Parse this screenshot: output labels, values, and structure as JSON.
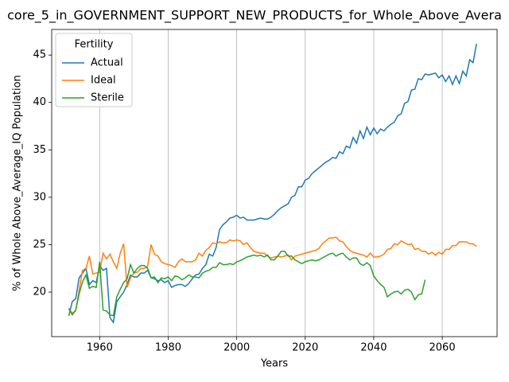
{
  "chart_data": {
    "type": "line",
    "title": "core_5_in_GOVERNMENT_SUPPORT_NEW_PRODUCTS_for_Whole_Above_Avera",
    "x_label": "Years",
    "y_label": "% of Whole Above_Average_IQ Population",
    "legend_title": "Fertility",
    "legend_loc": "upper left",
    "grid": "x",
    "xlim": [
      1946,
      2076
    ],
    "ylim": [
      15.3,
      47.7
    ],
    "xticks": [
      1960,
      1980,
      2000,
      2020,
      2040,
      2060
    ],
    "yticks": [
      20,
      25,
      30,
      35,
      40,
      45
    ],
    "x": [
      1951,
      1952,
      1953,
      1954,
      1955,
      1956,
      1957,
      1958,
      1959,
      1960,
      1961,
      1962,
      1963,
      1964,
      1965,
      1966,
      1967,
      1968,
      1969,
      1970,
      1971,
      1972,
      1973,
      1974,
      1975,
      1976,
      1977,
      1978,
      1979,
      1980,
      1981,
      1982,
      1983,
      1984,
      1985,
      1986,
      1987,
      1988,
      1989,
      1990,
      1991,
      1992,
      1993,
      1994,
      1995,
      1996,
      1997,
      1998,
      1999,
      2000,
      2001,
      2002,
      2003,
      2004,
      2005,
      2006,
      2007,
      2008,
      2009,
      2010,
      2011,
      2012,
      2013,
      2014,
      2015,
      2016,
      2017,
      2018,
      2019,
      2020,
      2021,
      2022,
      2023,
      2024,
      2025,
      2026,
      2027,
      2028,
      2029,
      2030,
      2031,
      2032,
      2033,
      2034,
      2035,
      2036,
      2037,
      2038,
      2039,
      2040,
      2041,
      2042,
      2043,
      2044,
      2045,
      2046,
      2047,
      2048,
      2049,
      2050,
      2051,
      2052,
      2053,
      2054,
      2055,
      2056,
      2057,
      2058,
      2059,
      2060,
      2061,
      2062,
      2063,
      2064,
      2065,
      2066,
      2067,
      2068,
      2069,
      2070
    ],
    "series": [
      {
        "name": "Actual",
        "color": "#1f77b4",
        "values": [
          17.5,
          19.0,
          19.3,
          21.5,
          22.0,
          22.5,
          20.8,
          21.2,
          21.0,
          22.8,
          22.3,
          22.5,
          17.3,
          16.8,
          19.0,
          19.5,
          20.0,
          20.8,
          21.8,
          21.6,
          21.6,
          22.0,
          22.0,
          22.3,
          21.5,
          21.4,
          21.2,
          21.3,
          21.0,
          21.2,
          20.5,
          20.7,
          20.8,
          20.8,
          20.6,
          20.9,
          21.4,
          21.8,
          21.9,
          22.5,
          22.9,
          24.0,
          23.8,
          24.7,
          26.6,
          27.1,
          27.4,
          27.8,
          27.9,
          28.1,
          27.8,
          27.9,
          27.6,
          27.6,
          27.6,
          27.7,
          27.8,
          27.7,
          27.7,
          27.9,
          28.2,
          28.6,
          28.9,
          29.1,
          29.3,
          30.0,
          30.2,
          31.1,
          31.1,
          31.8,
          32.0,
          32.5,
          32.8,
          33.1,
          33.4,
          33.7,
          33.9,
          34.2,
          34.1,
          34.8,
          34.6,
          35.4,
          35.2,
          36.3,
          35.7,
          37.0,
          36.2,
          37.4,
          36.6,
          37.3,
          36.7,
          37.2,
          37.0,
          37.4,
          37.7,
          37.9,
          38.6,
          38.8,
          39.9,
          40.1,
          41.3,
          41.4,
          42.5,
          42.4,
          43.0,
          42.9,
          43.0,
          43.1,
          42.6,
          42.9,
          42.2,
          42.8,
          41.9,
          42.8,
          42.0,
          43.3,
          42.8,
          44.5,
          44.2,
          46.2
        ]
      },
      {
        "name": "Ideal",
        "color": "#ff7f0e",
        "values": [
          18.2,
          17.8,
          18.0,
          20.2,
          22.3,
          22.5,
          23.8,
          21.9,
          22.0,
          22.1,
          24.1,
          23.5,
          24.0,
          23.2,
          22.5,
          24.1,
          25.1,
          20.5,
          21.5,
          22.0,
          22.1,
          22.5,
          22.5,
          22.7,
          25.0,
          24.0,
          23.8,
          23.2,
          23.0,
          22.9,
          22.8,
          22.6,
          23.2,
          23.5,
          23.2,
          23.2,
          23.2,
          23.4,
          24.1,
          23.8,
          24.4,
          24.7,
          25.2,
          25.1,
          25.3,
          25.2,
          25.2,
          25.5,
          25.4,
          25.5,
          25.4,
          25.0,
          25.2,
          24.7,
          24.3,
          24.2,
          24.1,
          24.1,
          23.8,
          23.6,
          23.7,
          23.8,
          23.7,
          23.8,
          23.9,
          23.4,
          23.8,
          23.9,
          24.0,
          24.1,
          24.2,
          24.3,
          24.4,
          24.6,
          25.1,
          25.4,
          25.7,
          25.7,
          25.8,
          25.4,
          25.3,
          24.8,
          24.4,
          24.2,
          24.1,
          24.0,
          23.9,
          23.7,
          24.1,
          23.7,
          23.7,
          23.8,
          24.0,
          24.5,
          24.6,
          25.1,
          25.0,
          25.4,
          25.2,
          25.0,
          25.1,
          24.5,
          24.6,
          24.3,
          24.3,
          24.0,
          24.2,
          23.9,
          24.2,
          24.0,
          24.5,
          24.5,
          24.9,
          24.9,
          25.3,
          25.3,
          25.3,
          25.1,
          25.1,
          24.8
        ]
      },
      {
        "name": "Sterile",
        "color": "#2ca02c",
        "values": [
          18.3,
          17.6,
          18.1,
          19.8,
          21.1,
          21.8,
          20.4,
          20.6,
          20.5,
          23.2,
          18.1,
          18.0,
          17.6,
          17.5,
          19.5,
          20.3,
          21.0,
          21.4,
          22.9,
          22.0,
          22.5,
          22.8,
          22.8,
          22.5,
          21.5,
          21.6,
          21.0,
          21.5,
          21.4,
          21.6,
          21.2,
          21.7,
          21.6,
          21.3,
          21.5,
          21.8,
          21.6,
          21.6,
          21.5,
          22.0,
          22.2,
          22.3,
          22.6,
          22.6,
          23.1,
          22.9,
          22.9,
          23.0,
          22.9,
          23.2,
          23.3,
          23.5,
          23.7,
          23.8,
          23.9,
          23.8,
          23.9,
          23.7,
          23.9,
          23.4,
          23.4,
          23.8,
          24.3,
          24.3,
          23.8,
          23.8,
          23.4,
          23.2,
          23.0,
          23.2,
          23.3,
          23.4,
          23.3,
          23.4,
          23.6,
          23.8,
          24.0,
          24.1,
          23.8,
          24.0,
          24.1,
          23.7,
          23.4,
          23.6,
          23.6,
          23.0,
          22.8,
          23.1,
          22.8,
          21.7,
          21.2,
          20.8,
          20.5,
          19.5,
          19.8,
          20.0,
          20.1,
          19.8,
          20.2,
          20.3,
          20.0,
          19.2,
          19.7,
          19.8,
          21.3,
          null,
          null,
          null,
          null,
          null,
          null,
          null,
          null,
          null,
          null,
          null,
          null,
          null,
          null,
          null
        ]
      }
    ]
  }
}
